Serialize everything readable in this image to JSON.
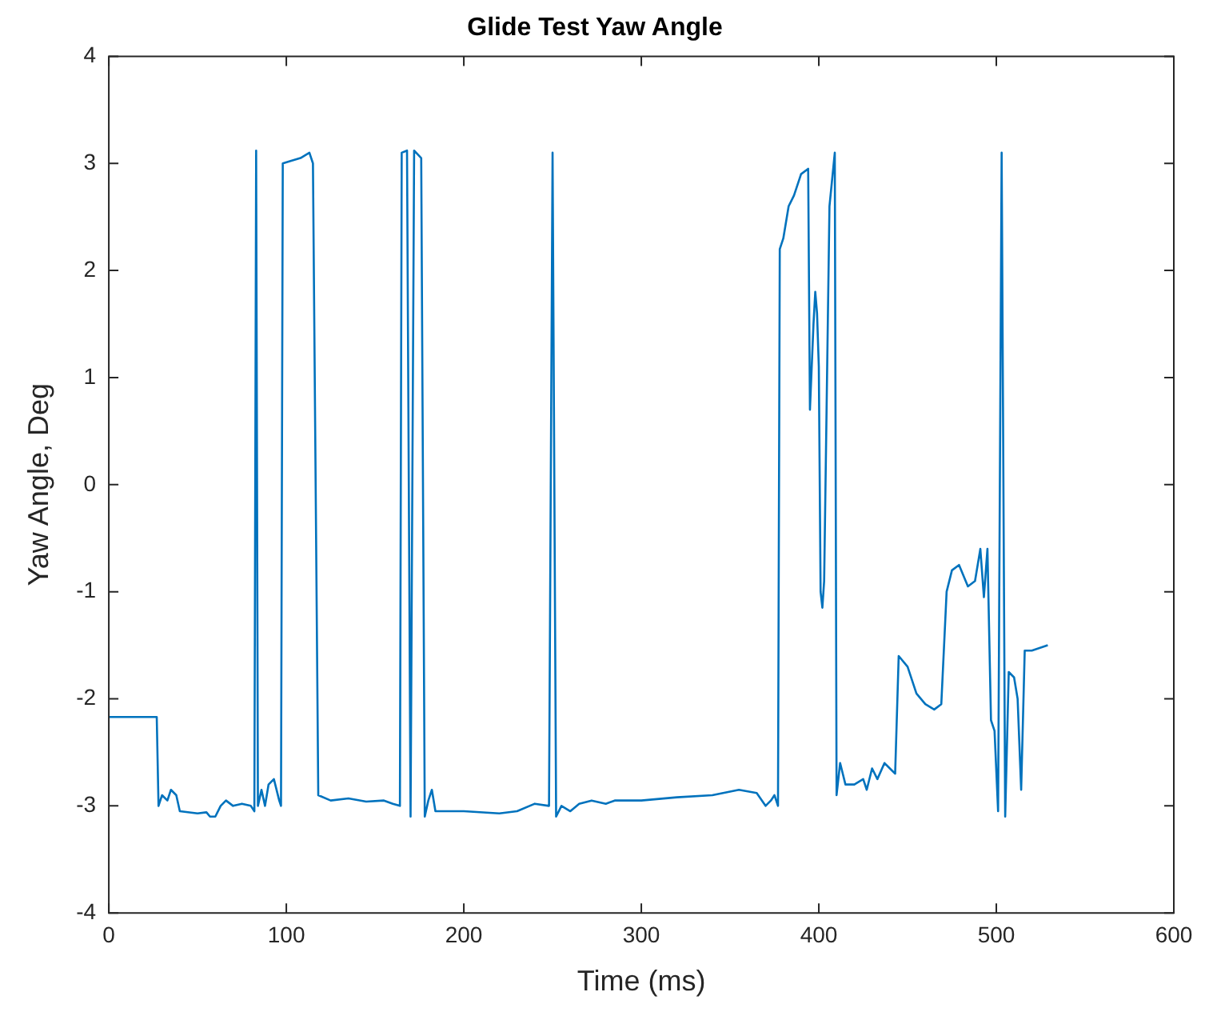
{
  "chart_data": {
    "type": "line",
    "title": "Glide Test Yaw Angle",
    "xlabel": "Time (ms)",
    "ylabel": "Yaw Angle, Deg",
    "xlim": [
      0,
      600
    ],
    "xticks": [
      0,
      100,
      200,
      300,
      400,
      500,
      600
    ],
    "ylim": [
      -4,
      4
    ],
    "yticks": [
      -4,
      -3,
      -2,
      -1,
      0,
      1,
      2,
      3,
      4
    ],
    "grid": false,
    "legend": false,
    "marker": "none",
    "line_style": "solid",
    "series": [
      {
        "color": "#0072bd",
        "x": [
          0,
          27,
          28,
          30,
          33,
          35,
          38,
          40,
          50,
          55,
          57,
          60,
          63,
          66,
          70,
          75,
          80,
          82,
          83,
          84,
          86,
          88,
          90,
          93,
          96,
          97,
          98,
          102,
          108,
          113,
          115,
          118,
          125,
          135,
          145,
          155,
          160,
          164,
          165,
          168,
          170,
          172,
          176,
          178,
          180,
          182,
          184,
          200,
          220,
          230,
          240,
          248,
          250,
          252,
          255,
          260,
          265,
          272,
          280,
          285,
          300,
          320,
          340,
          355,
          365,
          370,
          373,
          375,
          377,
          378,
          380,
          383,
          386,
          390,
          394,
          395,
          397,
          398,
          399,
          400,
          401,
          402,
          403,
          406,
          409,
          410,
          412,
          415,
          420,
          425,
          427,
          430,
          433,
          437,
          440,
          443,
          445,
          450,
          455,
          460,
          465,
          469,
          472,
          475,
          479,
          484,
          488,
          491,
          493,
          495,
          497,
          499,
          501,
          503,
          505,
          507,
          510,
          512,
          514,
          516,
          520,
          529
        ],
        "values": [
          -2.17,
          -2.17,
          -3.0,
          -2.9,
          -2.95,
          -2.85,
          -2.9,
          -3.05,
          -3.07,
          -3.06,
          -3.1,
          -3.1,
          -3.0,
          -2.95,
          -3.0,
          -2.98,
          -3.0,
          -3.05,
          3.12,
          -3.0,
          -2.85,
          -3.0,
          -2.8,
          -2.75,
          -2.95,
          -3.0,
          3.0,
          3.02,
          3.05,
          3.1,
          3.0,
          -2.9,
          -2.95,
          -2.93,
          -2.96,
          -2.95,
          -2.98,
          -3.0,
          3.1,
          3.12,
          -3.1,
          3.12,
          3.05,
          -3.1,
          -2.95,
          -2.85,
          -3.05,
          -3.05,
          -3.07,
          -3.05,
          -2.98,
          -3.0,
          3.1,
          -3.1,
          -3.0,
          -3.05,
          -2.98,
          -2.95,
          -2.98,
          -2.95,
          -2.95,
          -2.92,
          -2.9,
          -2.85,
          -2.88,
          -3.0,
          -2.95,
          -2.9,
          -3.0,
          2.2,
          2.3,
          2.6,
          2.7,
          2.9,
          2.95,
          0.7,
          1.5,
          1.8,
          1.6,
          1.1,
          -1.0,
          -1.15,
          -0.9,
          2.6,
          3.1,
          -2.9,
          -2.6,
          -2.8,
          -2.8,
          -2.75,
          -2.85,
          -2.65,
          -2.75,
          -2.6,
          -2.65,
          -2.7,
          -1.6,
          -1.7,
          -1.95,
          -2.05,
          -2.1,
          -2.05,
          -1.0,
          -0.8,
          -0.75,
          -0.95,
          -0.9,
          -0.6,
          -1.05,
          -0.6,
          -2.2,
          -2.3,
          -3.05,
          3.1,
          -3.1,
          -1.75,
          -1.8,
          -2.0,
          -2.85,
          -1.55,
          -1.55,
          -1.5
        ]
      }
    ]
  }
}
